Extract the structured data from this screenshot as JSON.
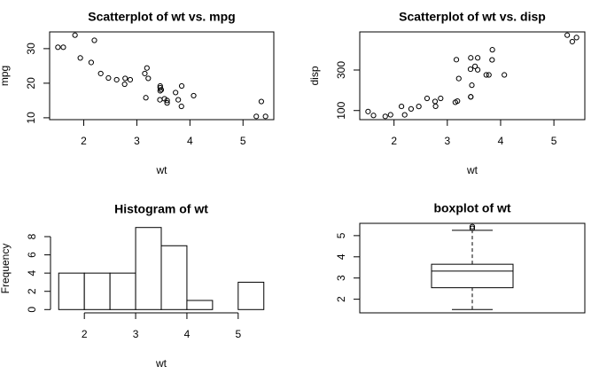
{
  "chart_data": [
    {
      "type": "scatter",
      "title": "Scatterplot of wt vs. mpg",
      "xlabel": "wt",
      "ylabel": "mpg",
      "x": [
        2.62,
        2.875,
        2.32,
        3.215,
        3.44,
        3.46,
        3.57,
        3.19,
        3.15,
        3.44,
        3.44,
        4.07,
        3.73,
        3.78,
        5.25,
        5.424,
        5.345,
        2.2,
        1.615,
        1.835,
        2.465,
        3.52,
        3.435,
        3.84,
        3.845,
        1.935,
        2.14,
        1.513,
        3.17,
        2.77,
        3.57,
        2.78
      ],
      "values": [
        21,
        21,
        22.8,
        21.4,
        18.7,
        18.1,
        14.3,
        24.4,
        22.8,
        19.2,
        17.8,
        16.4,
        17.3,
        15.2,
        10.4,
        10.4,
        14.7,
        32.4,
        30.4,
        33.9,
        21.5,
        15.5,
        15.2,
        13.3,
        19.2,
        27.3,
        26,
        30.4,
        15.8,
        19.7,
        15,
        21.4
      ],
      "xlim": [
        1.357,
        5.58
      ],
      "ylim": [
        9.46,
        34.84
      ],
      "xticks": [
        2,
        3,
        4,
        5
      ],
      "yticks": [
        10,
        20,
        30
      ],
      "color": "#000000"
    },
    {
      "type": "scatter",
      "title": "Scatterplot of wt vs. disp",
      "xlabel": "wt",
      "ylabel": "disp",
      "x": [
        2.62,
        2.875,
        2.32,
        3.215,
        3.44,
        3.46,
        3.57,
        3.19,
        3.15,
        3.44,
        3.44,
        4.07,
        3.73,
        3.78,
        5.25,
        5.424,
        5.345,
        2.2,
        1.615,
        1.835,
        2.465,
        3.52,
        3.435,
        3.84,
        3.845,
        1.935,
        2.14,
        1.513,
        3.17,
        2.77,
        3.57,
        2.78
      ],
      "values": [
        160,
        160,
        108,
        258,
        360,
        225,
        360,
        146.7,
        140.8,
        167.6,
        167.6,
        275.8,
        275.8,
        275.8,
        472,
        460,
        440,
        78.7,
        75.7,
        71.1,
        120.1,
        318,
        304,
        350,
        400,
        79,
        120.3,
        95.1,
        351,
        145,
        301,
        121
      ],
      "xlim": [
        1.357,
        5.58
      ],
      "ylim": [
        55.06,
        488.04
      ],
      "xticks": [
        2,
        3,
        4,
        5
      ],
      "yticks": [
        100,
        300
      ],
      "color": "#000000"
    },
    {
      "type": "histogram",
      "title": "Histogram of wt",
      "xlabel": "wt",
      "ylabel": "Frequency",
      "bins": [
        1.5,
        2,
        2.5,
        3,
        3.5,
        4,
        4.5,
        5,
        5.5
      ],
      "values": [
        4,
        4,
        4,
        9,
        7,
        1,
        0,
        3
      ],
      "xlim": [
        1.34,
        5.66
      ],
      "ylim": [
        -0.36,
        9.36
      ],
      "xticks": [
        2,
        3,
        4,
        5
      ],
      "yticks": [
        0,
        2,
        4,
        6,
        8
      ],
      "color": "#ffffff"
    },
    {
      "type": "box",
      "title": "boxplot of wt",
      "min": 1.513,
      "q1": 2.5425,
      "median": 3.325,
      "q3": 3.65,
      "max": 5.25,
      "outliers": [
        5.345,
        5.424
      ],
      "ylim": [
        1.357,
        5.58
      ],
      "yticks": [
        2,
        3,
        4,
        5
      ],
      "color": "#ffffff"
    }
  ]
}
